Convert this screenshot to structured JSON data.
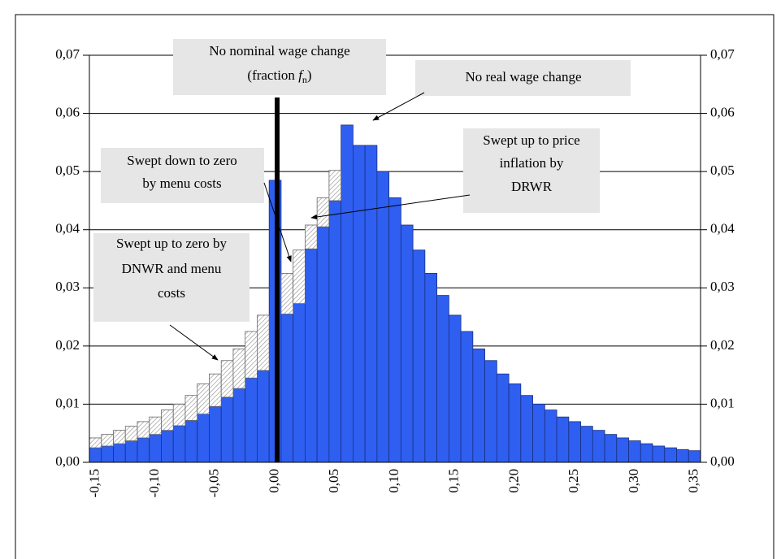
{
  "chart_data": {
    "type": "bar",
    "stacked": true,
    "categories": [
      "-0,15",
      null,
      null,
      null,
      null,
      "-0,10",
      null,
      null,
      null,
      null,
      "-0,05",
      null,
      null,
      null,
      null,
      "0,00",
      null,
      null,
      null,
      null,
      "0,05",
      null,
      null,
      null,
      null,
      "0,10",
      null,
      null,
      null,
      null,
      "0,15",
      null,
      null,
      null,
      null,
      "0,20",
      null,
      null,
      null,
      null,
      "0,25",
      null,
      null,
      null,
      null,
      "0,30",
      null,
      null,
      null,
      null,
      "0,35"
    ],
    "series": [
      {
        "color": "#2f5ff0",
        "values": [
          0.0025,
          0.0028,
          0.0032,
          0.0037,
          0.0042,
          0.0048,
          0.0055,
          0.0063,
          0.0072,
          0.0083,
          0.0096,
          0.0112,
          0.0127,
          0.0145,
          0.0158,
          0.0485,
          0.0255,
          0.0273,
          0.0367,
          0.0405,
          0.045,
          0.058,
          0.0545,
          0.0545,
          0.05,
          0.0455,
          0.0408,
          0.0365,
          0.0325,
          0.0287,
          0.0253,
          0.0225,
          0.0195,
          0.0175,
          0.0152,
          0.0135,
          0.0115,
          0.01,
          0.009,
          0.0078,
          0.007,
          0.0062,
          0.0055,
          0.0048,
          0.0042,
          0.0037,
          0.0032,
          0.0028,
          0.0025,
          0.0022,
          0.002
        ]
      },
      {
        "color": "#8c8c8c",
        "values": [
          0.0017,
          0.002,
          0.0023,
          0.0025,
          0.0028,
          0.003,
          0.0035,
          0.0037,
          0.0043,
          0.0052,
          0.0056,
          0.0063,
          0.0068,
          0.008,
          0.0095,
          0,
          0.007,
          0.0092,
          0.0041,
          0.005,
          0.0052,
          0,
          0,
          0,
          0,
          0,
          0,
          0,
          0,
          0,
          0,
          0,
          0,
          0,
          0,
          0,
          0,
          0,
          0,
          0,
          0,
          0,
          0,
          0,
          0,
          0,
          0,
          0,
          0,
          0,
          0
        ]
      }
    ],
    "ylim": [
      0,
      0.07
    ],
    "yticks": [
      {
        "value": 0,
        "label": "0,00"
      },
      {
        "value": 0.01,
        "label": "0,01"
      },
      {
        "value": 0.02,
        "label": "0,02"
      },
      {
        "value": 0.03,
        "label": "0,03"
      },
      {
        "value": 0.04,
        "label": "0,04"
      },
      {
        "value": 0.05,
        "label": "0,05"
      },
      {
        "value": 0.06,
        "label": "0,06"
      },
      {
        "value": 0.07,
        "label": "0,07"
      }
    ],
    "y2lim": [
      0,
      0.07
    ],
    "y2ticks": [
      {
        "value": 0,
        "label": "0,00"
      },
      {
        "value": 0.01,
        "label": "0,01"
      },
      {
        "value": 0.02,
        "label": "0,02"
      },
      {
        "value": 0.03,
        "label": "0,03"
      },
      {
        "value": 0.04,
        "label": "0,04"
      },
      {
        "value": 0.05,
        "label": "0,05"
      },
      {
        "value": 0.06,
        "label": "0,06"
      },
      {
        "value": 0.07,
        "label": "0,07"
      }
    ],
    "grid": true,
    "annotations": [
      {
        "lines": [
          "No nominal wage change",
          "(fraction ",
          "f",
          "n",
          ")"
        ]
      },
      {
        "lines": [
          "No real wage change"
        ]
      },
      {
        "lines": [
          "Swept up to price",
          "inflation by",
          "DRWR"
        ]
      },
      {
        "lines": [
          "Swept down to zero",
          "by menu costs"
        ]
      },
      {
        "lines": [
          "Swept up to zero by",
          "DNWR and menu",
          "costs"
        ]
      }
    ]
  }
}
